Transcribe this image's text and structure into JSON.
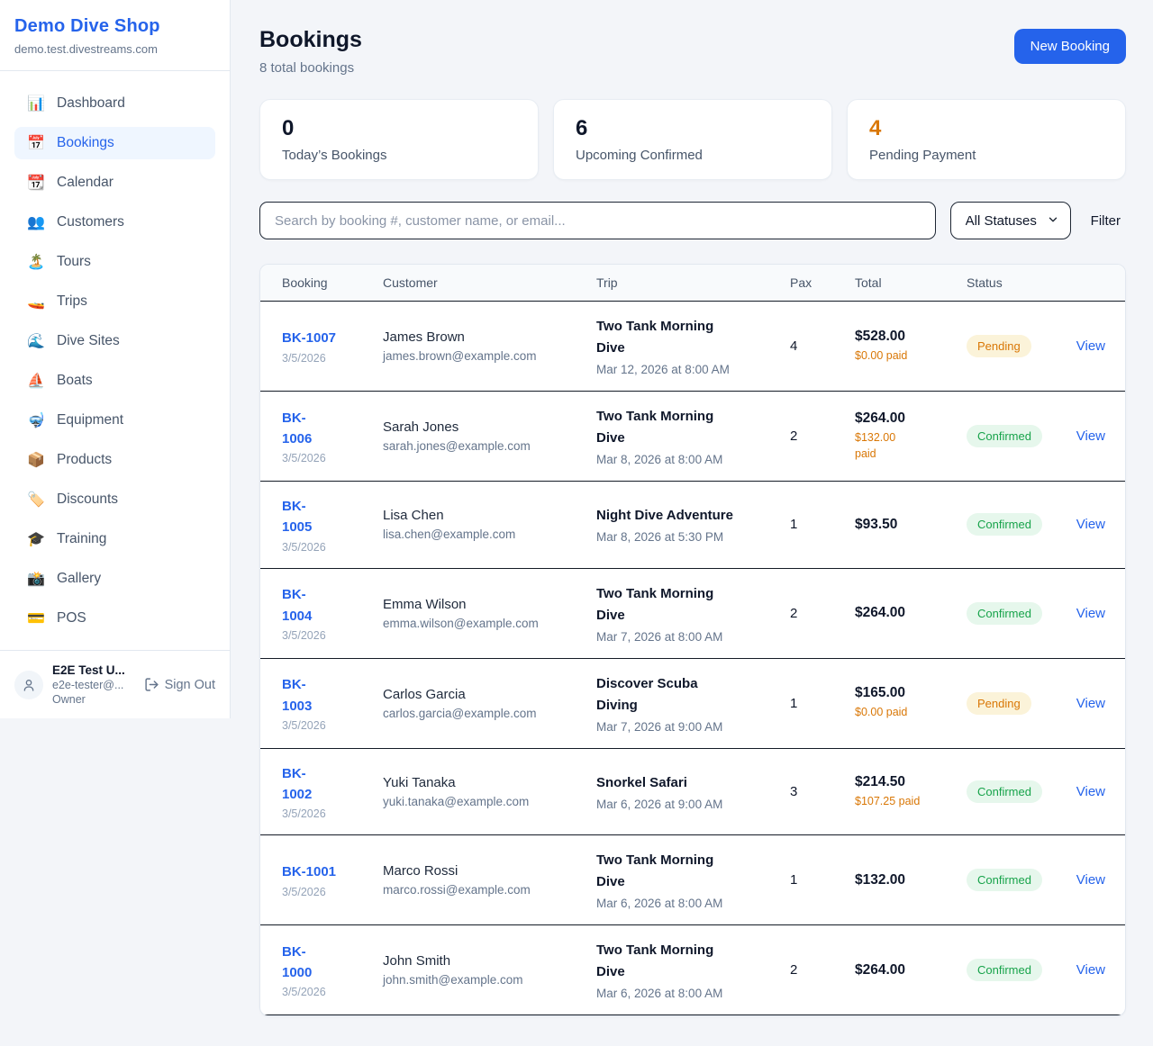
{
  "sidebar": {
    "brand": {
      "name": "Demo Dive Shop",
      "domain": "demo.test.divestreams.com"
    },
    "items": [
      {
        "icon": "📊",
        "label": "Dashboard",
        "active": false
      },
      {
        "icon": "📅",
        "label": "Bookings",
        "active": true
      },
      {
        "icon": "📆",
        "label": "Calendar",
        "active": false
      },
      {
        "icon": "👥",
        "label": "Customers",
        "active": false
      },
      {
        "icon": "🏝️",
        "label": "Tours",
        "active": false
      },
      {
        "icon": "🚤",
        "label": "Trips",
        "active": false
      },
      {
        "icon": "🌊",
        "label": "Dive Sites",
        "active": false
      },
      {
        "icon": "⛵",
        "label": "Boats",
        "active": false
      },
      {
        "icon": "🤿",
        "label": "Equipment",
        "active": false
      },
      {
        "icon": "📦",
        "label": "Products",
        "active": false
      },
      {
        "icon": "🏷️",
        "label": "Discounts",
        "active": false
      },
      {
        "icon": "🎓",
        "label": "Training",
        "active": false
      },
      {
        "icon": "📸",
        "label": "Gallery",
        "active": false
      },
      {
        "icon": "💳",
        "label": "POS",
        "active": false
      }
    ],
    "user": {
      "name": "E2E Test U...",
      "email": "e2e-tester@...",
      "role": "Owner",
      "signout_label": "Sign Out"
    }
  },
  "header": {
    "title": "Bookings",
    "subtitle": "8 total bookings",
    "new_booking_label": "New Booking"
  },
  "stats": [
    {
      "value": "0",
      "label": "Today’s Bookings",
      "accent": false
    },
    {
      "value": "6",
      "label": "Upcoming Confirmed",
      "accent": false
    },
    {
      "value": "4",
      "label": "Pending Payment",
      "accent": true
    }
  ],
  "controls": {
    "search_placeholder": "Search by booking #, customer name, or email...",
    "status_filter_value": "All Statuses",
    "filter_label": "Filter"
  },
  "table": {
    "columns": [
      "Booking",
      "Customer",
      "Trip",
      "Pax",
      "Total",
      "Status",
      ""
    ],
    "rows": [
      {
        "booking_lines": [
          "BK-1007"
        ],
        "date": "3/5/2026",
        "customer": "James Brown",
        "email": "james.brown@example.com",
        "trip_lines": [
          "Two Tank Morning",
          "Dive"
        ],
        "trip_time": "Mar 12, 2026 at 8:00 AM",
        "pax": "4",
        "total": "$528.00",
        "paid_lines": [
          "$0.00 paid"
        ],
        "status": "Pending",
        "view_label": "View"
      },
      {
        "booking_lines": [
          "BK-",
          "1006"
        ],
        "date": "3/5/2026",
        "customer": "Sarah Jones",
        "email": "sarah.jones@example.com",
        "trip_lines": [
          "Two Tank Morning",
          "Dive"
        ],
        "trip_time": "Mar 8, 2026 at 8:00 AM",
        "pax": "2",
        "total": "$264.00",
        "paid_lines": [
          "$132.00",
          "paid"
        ],
        "status": "Confirmed",
        "view_label": "View"
      },
      {
        "booking_lines": [
          "BK-",
          "1005"
        ],
        "date": "3/5/2026",
        "customer": "Lisa Chen",
        "email": "lisa.chen@example.com",
        "trip_lines": [
          "Night Dive Adventure"
        ],
        "trip_time": "Mar 8, 2026 at 5:30 PM",
        "pax": "1",
        "total": "$93.50",
        "paid_lines": [],
        "status": "Confirmed",
        "view_label": "View"
      },
      {
        "booking_lines": [
          "BK-",
          "1004"
        ],
        "date": "3/5/2026",
        "customer": "Emma Wilson",
        "email": "emma.wilson@example.com",
        "trip_lines": [
          "Two Tank Morning",
          "Dive"
        ],
        "trip_time": "Mar 7, 2026 at 8:00 AM",
        "pax": "2",
        "total": "$264.00",
        "paid_lines": [],
        "status": "Confirmed",
        "view_label": "View"
      },
      {
        "booking_lines": [
          "BK-",
          "1003"
        ],
        "date": "3/5/2026",
        "customer": "Carlos Garcia",
        "email": "carlos.garcia@example.com",
        "trip_lines": [
          "Discover Scuba",
          "Diving"
        ],
        "trip_time": "Mar 7, 2026 at 9:00 AM",
        "pax": "1",
        "total": "$165.00",
        "paid_lines": [
          "$0.00 paid"
        ],
        "status": "Pending",
        "view_label": "View"
      },
      {
        "booking_lines": [
          "BK-",
          "1002"
        ],
        "date": "3/5/2026",
        "customer": "Yuki Tanaka",
        "email": "yuki.tanaka@example.com",
        "trip_lines": [
          "Snorkel Safari"
        ],
        "trip_time": "Mar 6, 2026 at 9:00 AM",
        "pax": "3",
        "total": "$214.50",
        "paid_lines": [
          "$107.25 paid"
        ],
        "status": "Confirmed",
        "view_label": "View"
      },
      {
        "booking_lines": [
          "BK-1001"
        ],
        "date": "3/5/2026",
        "customer": "Marco Rossi",
        "email": "marco.rossi@example.com",
        "trip_lines": [
          "Two Tank Morning",
          "Dive"
        ],
        "trip_time": "Mar 6, 2026 at 8:00 AM",
        "pax": "1",
        "total": "$132.00",
        "paid_lines": [],
        "status": "Confirmed",
        "view_label": "View"
      },
      {
        "booking_lines": [
          "BK-",
          "1000"
        ],
        "date": "3/5/2026",
        "customer": "John Smith",
        "email": "john.smith@example.com",
        "trip_lines": [
          "Two Tank Morning",
          "Dive"
        ],
        "trip_time": "Mar 6, 2026 at 8:00 AM",
        "pax": "2",
        "total": "$264.00",
        "paid_lines": [],
        "status": "Confirmed",
        "view_label": "View"
      }
    ]
  },
  "colors": {
    "brand_blue": "#2563eb",
    "accent_orange": "#d97706",
    "confirmed_green": "#17a34a",
    "pending_badge_bg": "#fbf3d9",
    "confirmed_badge_bg": "#e6f7ec",
    "page_bg": "#f3f5f9"
  }
}
